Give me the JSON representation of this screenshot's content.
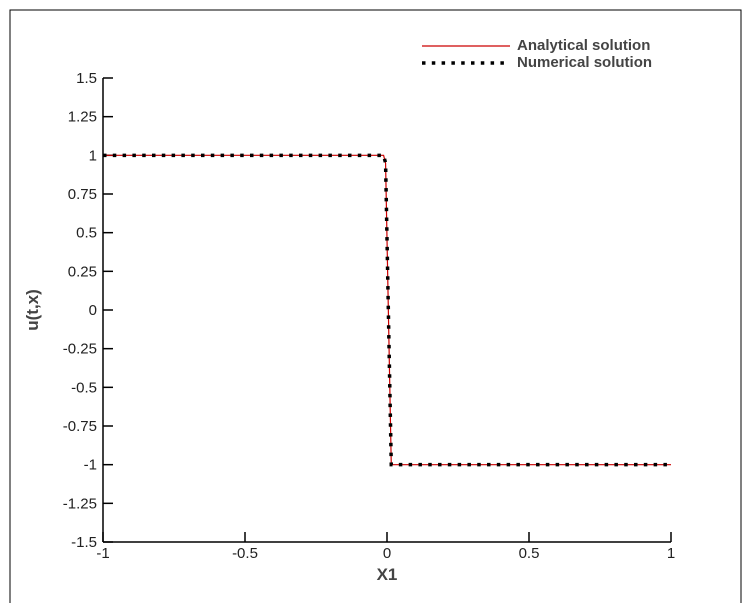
{
  "chart_data": {
    "type": "line",
    "x_label": "X1",
    "y_label": "u(t,x)",
    "xlim": [
      -1,
      1
    ],
    "ylim": [
      -1.5,
      1.5
    ],
    "xticks": [
      -1,
      -0.5,
      0,
      0.5,
      1
    ],
    "yticks": [
      1.5,
      1.25,
      1,
      0.75,
      0.5,
      0.25,
      0,
      -0.25,
      -0.5,
      -0.75,
      -1,
      -1.25,
      -1.5
    ],
    "legend_position": "top-right",
    "series": [
      {
        "name": "Analytical solution",
        "color": "#cc0000",
        "style": "solid",
        "x": [
          -1,
          -0.012,
          -0.005,
          0.015,
          1
        ],
        "values": [
          1,
          1,
          0.95,
          -1,
          -1
        ]
      },
      {
        "name": "Numerical solution",
        "color": "#000000",
        "style": "dotted",
        "x": [
          -1,
          -0.012,
          -0.005,
          0.015,
          1
        ],
        "values": [
          1,
          1,
          0.95,
          -1,
          -1
        ]
      }
    ]
  }
}
